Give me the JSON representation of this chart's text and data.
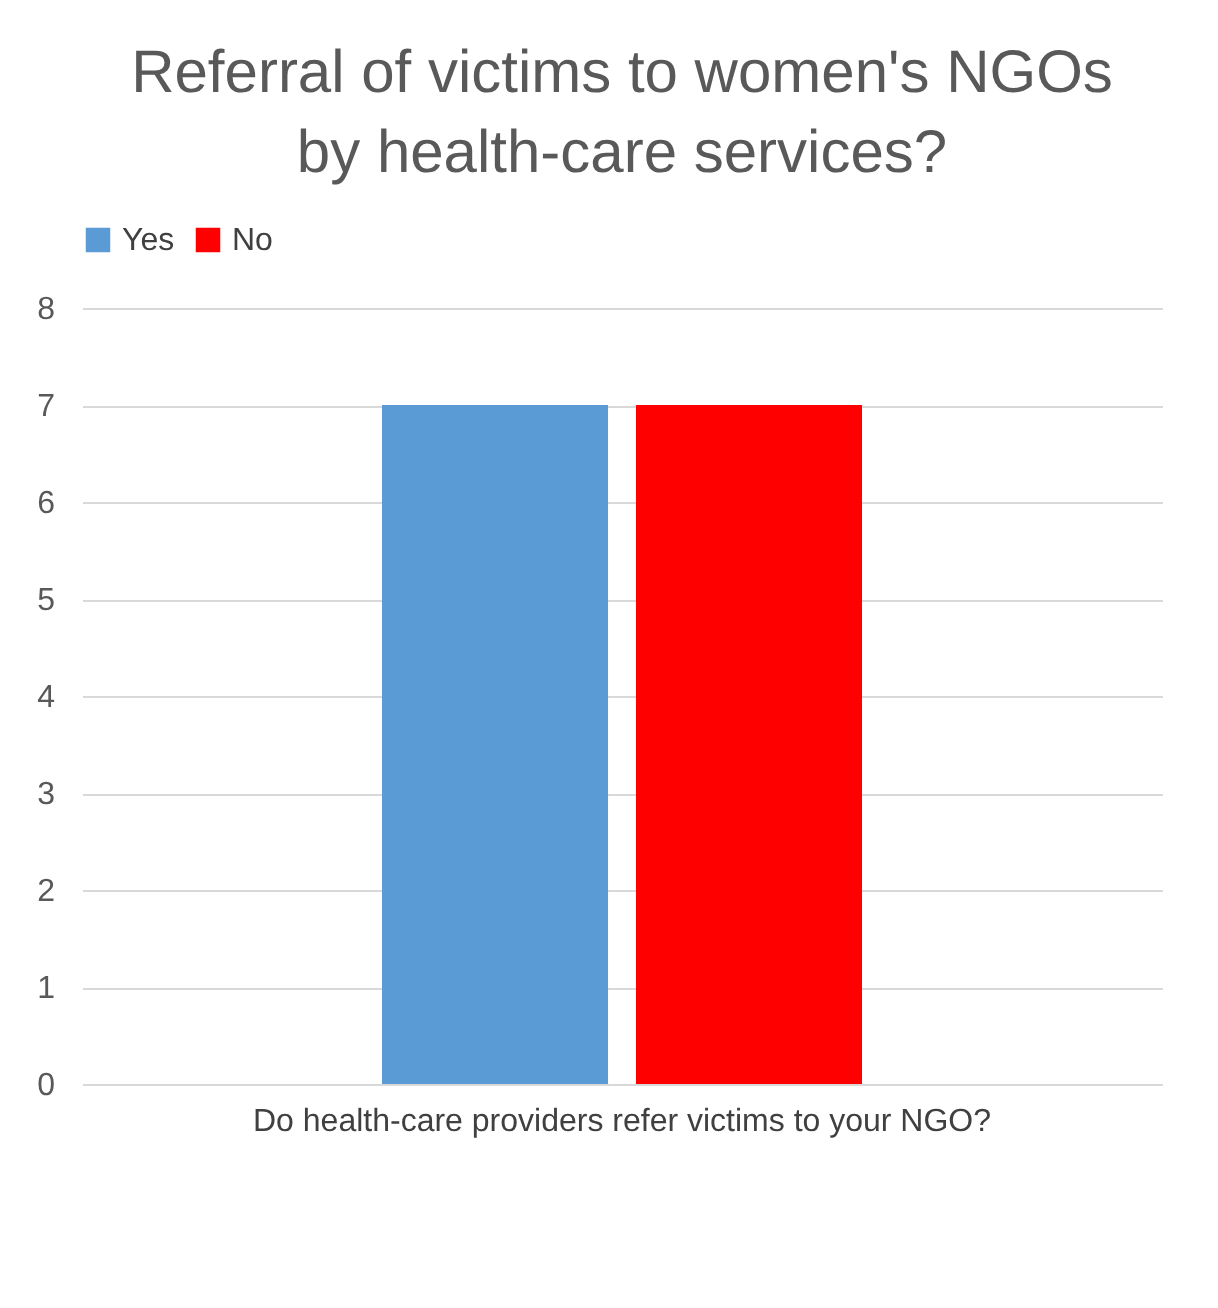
{
  "chart_data": {
    "type": "bar",
    "title": "Referral of victims to women's NGOs by health-care services?",
    "categories": [
      "Do health-care providers refer victims to your NGO?"
    ],
    "series": [
      {
        "name": "Yes",
        "color": "#5b9bd5",
        "values": [
          7
        ]
      },
      {
        "name": "No",
        "color": "#ff0000",
        "values": [
          7
        ]
      }
    ],
    "ylim": [
      0,
      8
    ],
    "yticks": [
      0,
      1,
      2,
      3,
      4,
      5,
      6,
      7,
      8
    ],
    "grid": "y",
    "legend": "top"
  }
}
